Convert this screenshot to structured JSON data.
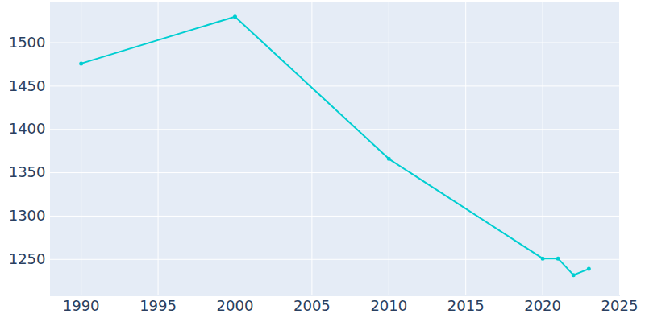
{
  "chart_data": {
    "type": "line",
    "x": [
      1990,
      2000,
      2010,
      2020,
      2021,
      2022,
      2023
    ],
    "values": [
      1476,
      1530,
      1366,
      1251,
      1251,
      1232,
      1239
    ],
    "color": "#00ced1",
    "marker": "circle",
    "xlim": [
      1988,
      2025
    ],
    "xticks": [
      1990,
      1995,
      2000,
      2005,
      2010,
      2015,
      2020,
      2025
    ],
    "ylim": [
      1208,
      1546
    ],
    "yticks": [
      1250,
      1300,
      1350,
      1400,
      1450,
      1500
    ],
    "grid": true
  }
}
